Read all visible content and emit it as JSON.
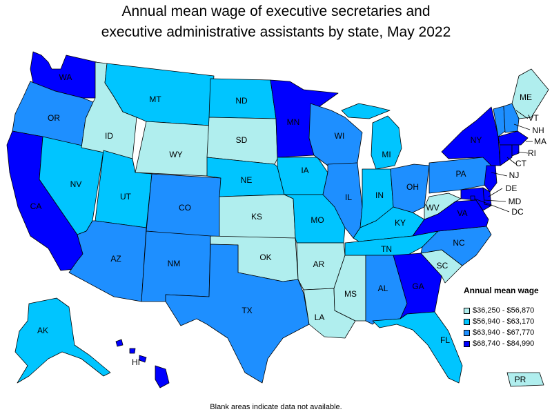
{
  "title_line1": "Annual mean wage of executive secretaries and",
  "title_line2": "executive administrative assistants by state, May 2022",
  "legend": {
    "title": "Annual mean wage",
    "items": [
      {
        "label": "$36,250 - $56,870",
        "color": "#b0eeee"
      },
      {
        "label": "$56,940 - $63,170",
        "color": "#00c5ff"
      },
      {
        "label": "$63,940 - $67,770",
        "color": "#1e8fff"
      },
      {
        "label": "$68,740 - $84,990",
        "color": "#0000ff"
      }
    ]
  },
  "footnote": "Blank areas indicate data not available.",
  "states": {
    "WA": 4,
    "OR": 3,
    "CA": 4,
    "NV": 2,
    "ID": 1,
    "MT": 2,
    "WY": 1,
    "UT": 2,
    "AZ": 3,
    "CO": 3,
    "NM": 3,
    "ND": 2,
    "SD": 1,
    "NE": 2,
    "KS": 1,
    "OK": 1,
    "TX": 3,
    "MN": 4,
    "IA": 2,
    "MO": 2,
    "AR": 1,
    "LA": 1,
    "WI": 3,
    "IL": 3,
    "MS": 1,
    "MI": 2,
    "IN": 2,
    "KY": 2,
    "TN": 2,
    "AL": 3,
    "OH": 3,
    "GA": 4,
    "FL": 2,
    "SC": 1,
    "NC": 3,
    "VA": 4,
    "WV": 1,
    "PA": 3,
    "NY": 4,
    "ME": 1,
    "VT": 3,
    "NH": 3,
    "MA": 4,
    "RI": 4,
    "CT": 4,
    "NJ": 4,
    "DE": 4,
    "MD": 4,
    "DC": 4,
    "AK": 2,
    "HI": 4,
    "PR": 1
  }
}
